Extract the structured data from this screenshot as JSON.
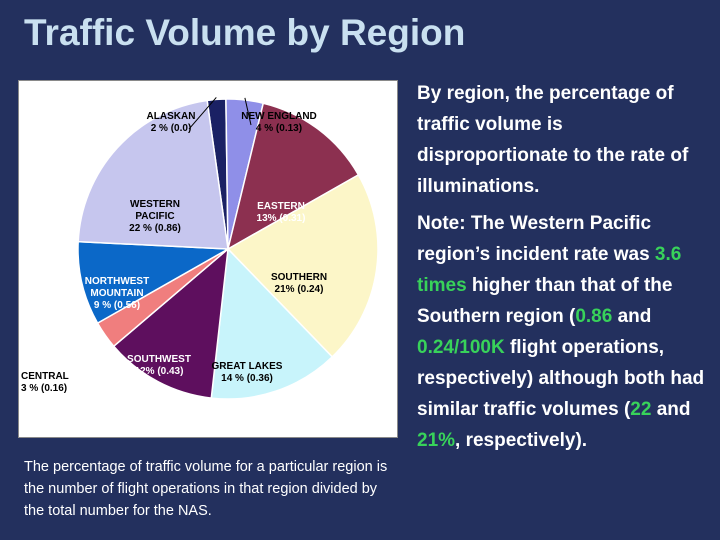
{
  "title": "Traffic Volume by Region",
  "caption": "The percentage of traffic volume for a particular region is the number of flight operations in that region divided by the total number for the NAS.",
  "paragraph1": "By region, the percentage of traffic volume is disproportionate to the rate of illuminations.",
  "note": {
    "part1": "Note: The Western Pacific region’s incident rate was ",
    "times": "3.6 times",
    "part2": " higher than that of the Southern region (",
    "rate1": "0.86",
    "part3": " and ",
    "rate2": "0.24/100K",
    "part4": " flight operations, respectively) although both had similar traffic volumes (",
    "vol1": "22",
    "part5": " and ",
    "vol2": "21%",
    "part6": ", respectively)."
  },
  "chart_data": {
    "type": "pie",
    "slices": [
      {
        "name": "ALASKAN",
        "value": 2,
        "rate": "0.0",
        "label": "2 % (0.0)",
        "color": "#1a2164"
      },
      {
        "name": "NEW ENGLAND",
        "value": 4,
        "rate": "0.13",
        "label": "4 % (0.13)",
        "color": "#8f8fe8"
      },
      {
        "name": "EASTERN",
        "value": 13,
        "rate": "0.31",
        "label": "13% (0.31)",
        "color": "#8c3050"
      },
      {
        "name": "SOUTHERN",
        "value": 21,
        "rate": "0.24",
        "label": "21% (0.24)",
        "color": "#fcf6c8"
      },
      {
        "name": "GREAT LAKES",
        "value": 14,
        "rate": "0.36",
        "label": "14 % (0.36)",
        "color": "#c8f4fb"
      },
      {
        "name": "SOUTHWEST",
        "value": 12,
        "rate": "0.43",
        "label": "12% (0.43)",
        "color": "#5e0f5e"
      },
      {
        "name": "CENTRAL",
        "value": 3,
        "rate": "0.16",
        "label": "3 % (0.16)",
        "color": "#f07e7e"
      },
      {
        "name": "NORTHWEST MOUNTAIN",
        "value": 9,
        "rate": "0.56",
        "label": "9 % (0.56)",
        "color": "#0b68c8"
      },
      {
        "name": "WESTERN PACIFIC",
        "value": 22,
        "rate": "0.86",
        "label": "22 % (0.86)",
        "color": "#c6c6ee"
      }
    ]
  }
}
